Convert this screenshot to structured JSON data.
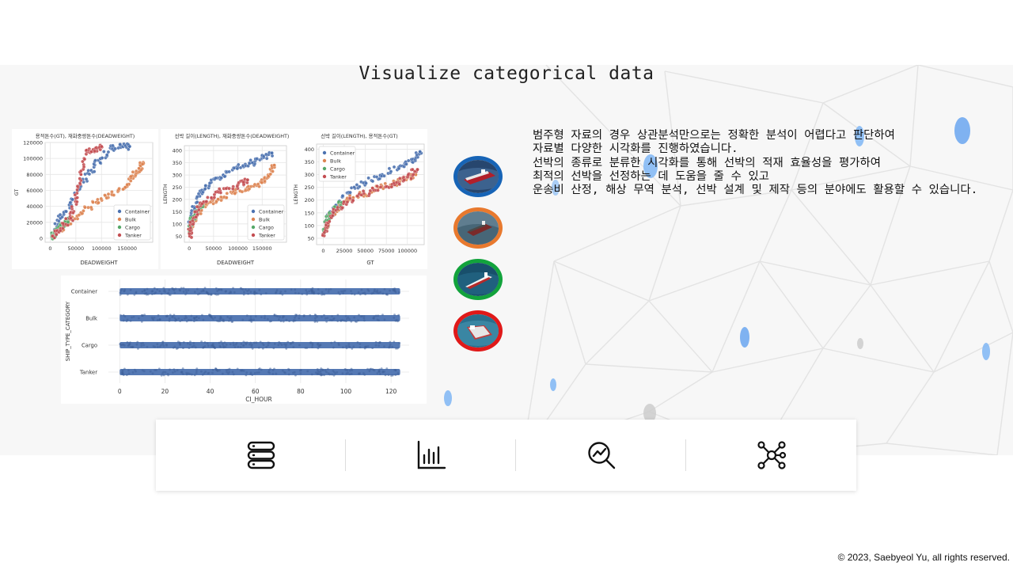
{
  "slide": {
    "title": "Visualize categorical data",
    "description": [
      "범주형 자료의 경우 상관분석만으로는 정확한 분석이 어렵다고 판단하여",
      "자료별 다양한 시각화를 진행하였습니다.",
      "선박의 종류로 분류한 시각화를 통해 선박의 적재 효율성을 평가하여",
      "최적의 선박을 선정하는 데 도움을 줄 수 있고",
      "운송비 산정, 해상 무역 분석, 선박 설계 및 제작 등의 분야에도 활용할 수 있습니다."
    ],
    "copyright": "© 2023,  Saebyeol Yu, all rights reserved."
  },
  "categories": [
    "Container",
    "Bulk",
    "Cargo",
    "Tanker"
  ],
  "category_colors": [
    "#4c72b0",
    "#dd8452",
    "#55a868",
    "#c44e52"
  ],
  "ship_ring_colors": [
    "#1764b6",
    "#e8792e",
    "#12a33c",
    "#e01919"
  ],
  "icons": [
    "database-icon",
    "bar-chart-icon",
    "analytics-search-icon",
    "network-icon"
  ],
  "chart_data": [
    {
      "type": "scatter",
      "title": "용적톤수(GT), 재화중량톤수(DEADWEIGHT)",
      "xlabel": "DEADWEIGHT",
      "ylabel": "GT",
      "xlim": [
        -10000,
        200000
      ],
      "ylim": [
        -5000,
        120000
      ],
      "xticks": [
        0,
        50000,
        100000,
        150000
      ],
      "yticks": [
        0,
        20000,
        40000,
        60000,
        80000,
        100000,
        120000
      ],
      "legend": "bottom-right",
      "grid": true,
      "series": [
        {
          "name": "Container",
          "x": [
            5000,
            20000,
            40000,
            60000,
            80000,
            100000,
            120000,
            140000,
            155000
          ],
          "y": [
            5000,
            25000,
            45000,
            65000,
            85000,
            100000,
            113000,
            115000,
            115000
          ]
        },
        {
          "name": "Bulk",
          "x": [
            5000,
            30000,
            60000,
            90000,
            120000,
            150000,
            160000,
            175000,
            180000
          ],
          "y": [
            3000,
            16000,
            32000,
            45000,
            55000,
            65000,
            78000,
            87000,
            93000
          ]
        },
        {
          "name": "Cargo",
          "x": [
            3000,
            8000,
            15000,
            25000,
            35000
          ],
          "y": [
            2000,
            6000,
            11000,
            18000,
            25000
          ]
        },
        {
          "name": "Tanker",
          "x": [
            5000,
            20000,
            40000,
            50000,
            60000,
            70000,
            90000,
            100000
          ],
          "y": [
            3000,
            12000,
            25000,
            50000,
            80000,
            110000,
            112000,
            115000
          ]
        }
      ]
    },
    {
      "type": "scatter",
      "title": "선박 길이(LENGTH), 재화중량톤수(DEADWEIGHT)",
      "xlabel": "DEADWEIGHT",
      "ylabel": "LENGTH",
      "xlim": [
        -10000,
        200000
      ],
      "ylim": [
        25,
        420
      ],
      "xticks": [
        0,
        50000,
        100000,
        150000
      ],
      "yticks": [
        50,
        100,
        150,
        200,
        250,
        300,
        350,
        400
      ],
      "legend": "bottom-right",
      "grid": true,
      "series": [
        {
          "name": "Container",
          "x": [
            2000,
            10000,
            25000,
            45000,
            70000,
            100000,
            130000,
            150000,
            170000
          ],
          "y": [
            100,
            170,
            230,
            270,
            300,
            330,
            350,
            370,
            390
          ]
        },
        {
          "name": "Bulk",
          "x": [
            2000,
            15000,
            35000,
            60000,
            90000,
            120000,
            150000,
            165000,
            175000
          ],
          "y": [
            80,
            140,
            180,
            200,
            230,
            250,
            270,
            300,
            340
          ]
        },
        {
          "name": "Cargo",
          "x": [
            1000,
            5000,
            12000,
            20000,
            30000
          ],
          "y": [
            70,
            110,
            140,
            165,
            190
          ]
        },
        {
          "name": "Tanker",
          "x": [
            1000,
            5000,
            15000,
            30000,
            60000,
            100000,
            120000
          ],
          "y": [
            50,
            100,
            150,
            190,
            230,
            260,
            280
          ]
        }
      ]
    },
    {
      "type": "scatter",
      "title": "선박 길이(LENGTH), 용적톤수(GT)",
      "xlabel": "GT",
      "ylabel": "LENGTH",
      "xlim": [
        -8000,
        120000
      ],
      "ylim": [
        25,
        420
      ],
      "xticks": [
        0,
        25000,
        50000,
        75000,
        100000
      ],
      "yticks": [
        50,
        100,
        150,
        200,
        250,
        300,
        350,
        400
      ],
      "legend": "top-left",
      "grid": true,
      "series": [
        {
          "name": "Container",
          "x": [
            3000,
            15000,
            30000,
            50000,
            70000,
            90000,
            105000,
            115000
          ],
          "y": [
            110,
            180,
            230,
            270,
            300,
            330,
            360,
            390
          ]
        },
        {
          "name": "Bulk",
          "x": [
            2000,
            10000,
            25000,
            40000,
            60000,
            80000,
            95000,
            110000
          ],
          "y": [
            90,
            150,
            190,
            215,
            240,
            260,
            280,
            300
          ]
        },
        {
          "name": "Cargo",
          "x": [
            1000,
            4000,
            8000,
            15000,
            22000
          ],
          "y": [
            70,
            110,
            140,
            165,
            190
          ]
        },
        {
          "name": "Tanker",
          "x": [
            1000,
            5000,
            15000,
            35000,
            60000,
            85000,
            100000,
            112000
          ],
          "y": [
            60,
            110,
            160,
            200,
            240,
            260,
            290,
            320
          ]
        }
      ]
    },
    {
      "type": "strip",
      "xlabel": "CI_HOUR",
      "ylabel": "SHIP_TYPE_CATEGORY",
      "categories": [
        "Container",
        "Bulk",
        "Cargo",
        "Tanker"
      ],
      "xlim": [
        -5,
        128
      ],
      "xticks": [
        0,
        20,
        40,
        60,
        80,
        100,
        120
      ],
      "ranges": [
        [
          0,
          124
        ],
        [
          0,
          124
        ],
        [
          0,
          124
        ],
        [
          0,
          124
        ]
      ],
      "grid": true
    }
  ]
}
